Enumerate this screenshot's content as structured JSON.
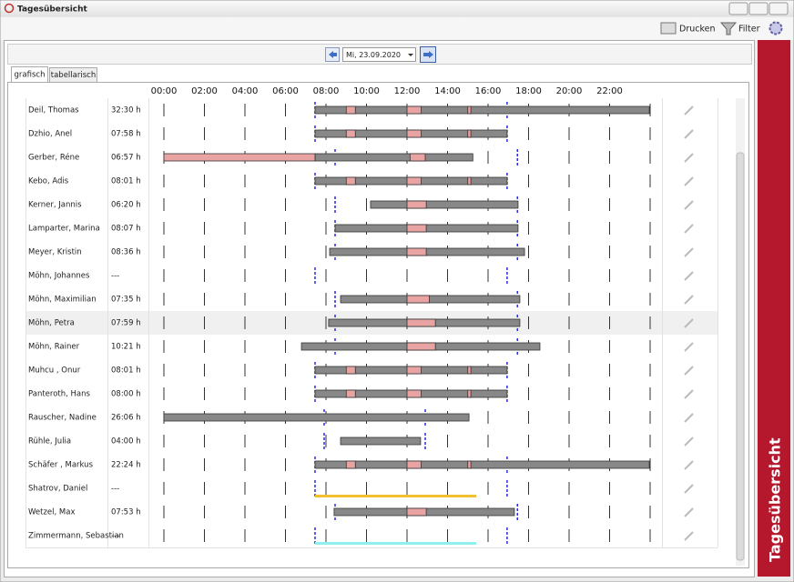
{
  "window": {
    "title": "Tagesübersicht"
  },
  "toolbar": {
    "print": "Drucken",
    "filter": "Filter"
  },
  "navigation": {
    "date": "Mi, 23.09.2020"
  },
  "tabs": [
    "grafisch",
    "tabellarisch"
  ],
  "side_panel": {
    "title": "Tagesübersicht"
  },
  "header": {
    "hours": [
      "00:00",
      "02:00",
      "04:00",
      "06:00",
      "08:00",
      "10:00",
      "12:00",
      "14:00",
      "16:00",
      "18:00",
      "20:00",
      "22:00"
    ]
  },
  "rows": [
    {
      "name": "Deil, Thomas",
      "duration": "32:30 h",
      "work": [
        [
          7.46,
          23.96
        ]
      ],
      "breaks": [
        [
          9,
          9.45
        ],
        [
          12,
          12.7
        ],
        [
          15,
          15.15
        ]
      ],
      "markers": [
        7.46,
        16.94
      ]
    },
    {
      "name": "Dzhio, Anel",
      "duration": "07:58 h",
      "work": [
        [
          7.46,
          16.94
        ]
      ],
      "breaks": [
        [
          9,
          9.45
        ],
        [
          12,
          12.7
        ],
        [
          15,
          15.15
        ]
      ],
      "markers": [
        7.46,
        16.94
      ]
    },
    {
      "name": "Gerber, Réne",
      "duration": "06:57 h",
      "work": [
        [
          7.46,
          15.25
        ]
      ],
      "breaks": [
        [
          0,
          7.46
        ],
        [
          12.15,
          12.9
        ]
      ],
      "markers": [
        8.45,
        17.45
      ]
    },
    {
      "name": "Kebo, Adis",
      "duration": "08:01 h",
      "work": [
        [
          7.46,
          16.94
        ]
      ],
      "breaks": [
        [
          9,
          9.45
        ],
        [
          12,
          12.7
        ],
        [
          15,
          15.15
        ]
      ],
      "markers": [
        7.46,
        16.94
      ]
    },
    {
      "name": "Kerner, Jannis",
      "duration": "06:20 h",
      "work": [
        [
          10.2,
          17.48
        ]
      ],
      "breaks": [
        [
          12,
          12.95
        ]
      ],
      "markers": [
        8.45,
        17.45
      ]
    },
    {
      "name": "Lamparter, Marina",
      "duration": "08:07 h",
      "work": [
        [
          8.45,
          17.48
        ]
      ],
      "breaks": [
        [
          12,
          12.95
        ]
      ],
      "markers": [
        8.45,
        17.45
      ]
    },
    {
      "name": "Meyer, Kristin",
      "duration": "08:36 h",
      "work": [
        [
          8.18,
          17.8
        ]
      ],
      "breaks": [
        [
          12,
          12.95
        ]
      ],
      "markers": [
        8.45,
        17.45
      ]
    },
    {
      "name": "Möhn, Johannes",
      "duration": "---",
      "work": [],
      "breaks": [],
      "markers": [
        7.46,
        16.94
      ]
    },
    {
      "name": "Möhn, Maximilian",
      "duration": "07:35 h",
      "work": [
        [
          8.72,
          17.57
        ]
      ],
      "breaks": [
        [
          12,
          13.1
        ]
      ],
      "markers": [
        8.45,
        17.45
      ]
    },
    {
      "name": "Möhn, Petra",
      "duration": "07:59 h",
      "work": [
        [
          8.13,
          17.57
        ]
      ],
      "breaks": [
        [
          12,
          13.4
        ]
      ],
      "markers": [
        8.45,
        17.45
      ]
    },
    {
      "name": "Möhn, Rainer",
      "duration": "10:21 h",
      "work": [
        [
          6.79,
          18.56
        ]
      ],
      "breaks": [
        [
          12,
          13.4
        ]
      ],
      "markers": [
        8.45,
        17.45
      ]
    },
    {
      "name": "Muhcu , Onur",
      "duration": "08:01 h",
      "work": [
        [
          7.46,
          16.94
        ]
      ],
      "breaks": [
        [
          9,
          9.45
        ],
        [
          12,
          12.7
        ],
        [
          15,
          15.15
        ]
      ],
      "markers": [
        7.46,
        16.94
      ]
    },
    {
      "name": "Panteroth, Hans",
      "duration": "08:00 h",
      "work": [
        [
          7.46,
          16.94
        ]
      ],
      "breaks": [
        [
          9,
          9.45
        ],
        [
          12,
          12.7
        ],
        [
          15,
          15.15
        ]
      ],
      "markers": [
        7.46,
        16.94
      ]
    },
    {
      "name": "Rauscher, Nadine",
      "duration": "26:06 h",
      "work": [
        [
          0,
          15.06
        ]
      ],
      "breaks": [],
      "markers": [
        7.91,
        12.9
      ]
    },
    {
      "name": "Rühle, Julia",
      "duration": "04:00 h",
      "work": [
        [
          8.72,
          12.67
        ]
      ],
      "breaks": [],
      "markers": [
        7.91,
        12.9
      ]
    },
    {
      "name": "Schäfer , Markus",
      "duration": "22:24 h",
      "work": [
        [
          7.46,
          23.96
        ]
      ],
      "breaks": [
        [
          9,
          9.45
        ],
        [
          12,
          12.7
        ],
        [
          15,
          15.15
        ]
      ],
      "markers": [
        7.46,
        16.94
      ]
    },
    {
      "name": "Shatrov, Daniel",
      "duration": "---",
      "work": [],
      "breaks": [],
      "markers": [
        7.46,
        16.94
      ],
      "line": {
        "start": 7.46,
        "end": 15.42,
        "color": "#f0c030"
      }
    },
    {
      "name": "Wetzel, Max",
      "duration": "07:53 h",
      "work": [
        [
          8.4,
          17.3
        ]
      ],
      "breaks": [
        [
          12,
          12.95
        ]
      ],
      "markers": [
        8.45,
        17.45
      ]
    },
    {
      "name": "Zimmermann, Sebastian",
      "duration": "---",
      "work": [],
      "breaks": [],
      "markers": [
        7.46,
        16.94
      ],
      "line": {
        "start": 7.46,
        "end": 15.42,
        "color": "#90f0f0"
      }
    }
  ]
}
